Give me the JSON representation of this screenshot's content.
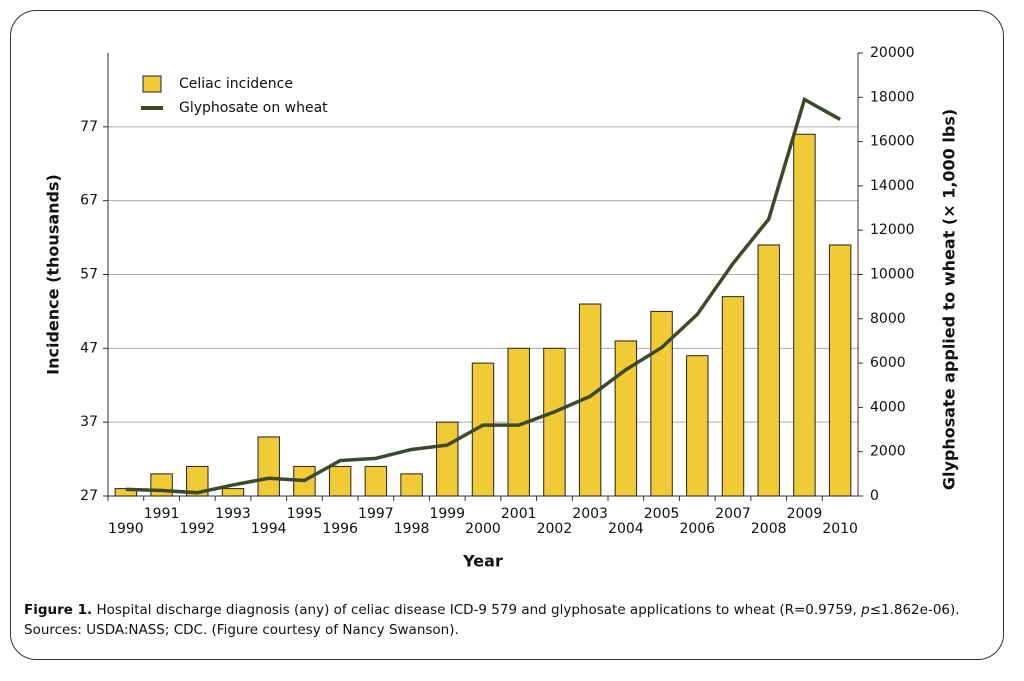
{
  "chart_data": {
    "type": "bar-line",
    "categories": [
      "1990",
      "1991",
      "1992",
      "1993",
      "1994",
      "1995",
      "1996",
      "1997",
      "1998",
      "1999",
      "2000",
      "2001",
      "2002",
      "2003",
      "2004",
      "2005",
      "2006",
      "2007",
      "2008",
      "2009",
      "2010"
    ],
    "series": [
      {
        "name": "Celiac incidence",
        "type": "bar",
        "color": "#f0cb36",
        "values": [
          28,
          30,
          31,
          28,
          35,
          31,
          31,
          31,
          30,
          37,
          45,
          47,
          47,
          53,
          48,
          52,
          46,
          54,
          61,
          76,
          61
        ]
      },
      {
        "name": "Glyphosate on wheat",
        "type": "line",
        "axis": "y2",
        "color": "#3d4a2a",
        "values": [
          300,
          250,
          150,
          500,
          800,
          700,
          1600,
          1700,
          2100,
          2300,
          3200,
          3200,
          3800,
          4500,
          5700,
          6700,
          8200,
          10500,
          12500,
          17900,
          17000
        ]
      }
    ],
    "xlabel": "Year",
    "ylabel": "Incidence (thousands)",
    "y2label": "Glyphosate applied to wheat (× 1,000 lbs)",
    "ylim": [
      27,
      87
    ],
    "yticks": [
      27,
      37,
      47,
      57,
      67,
      77
    ],
    "y2lim": [
      0,
      20000
    ],
    "y2ticks": [
      0,
      2000,
      4000,
      6000,
      8000,
      10000,
      12000,
      14000,
      16000,
      18000,
      20000
    ],
    "grid": true,
    "legend": "top-left"
  },
  "caption": {
    "label": "Figure 1.",
    "text": "Hospital discharge diagnosis (any) of celiac disease ICD-9 579 and glyphosate applications to wheat (R=0.9759, ",
    "italic": "p",
    "text_end": "≤1.862e-06). Sources: USDA:NASS; CDC. (Figure courtesy of Nancy Swanson)."
  }
}
